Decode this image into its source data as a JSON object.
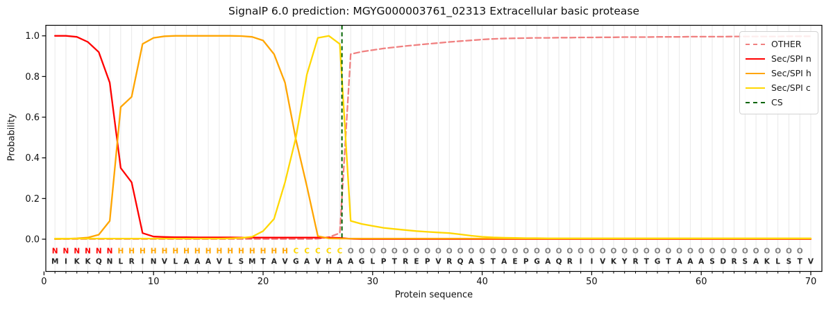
{
  "chart_data": {
    "type": "line",
    "title": "SignalP 6.0 prediction: MGYG000003761_02313 Extracellular basic protease",
    "xlabel": "Protein sequence",
    "ylabel": "Probability",
    "x_ticks": [
      0,
      10,
      20,
      30,
      40,
      50,
      60,
      70
    ],
    "y_ticks": [
      0.0,
      0.2,
      0.4,
      0.6,
      0.8,
      1.0
    ],
    "xlim": [
      0.2,
      71.0
    ],
    "ylim": [
      -0.155,
      1.05
    ],
    "grid": "vertical-per-residue",
    "positions_start": 1,
    "sequence": "MIKKQNLRINVLAAAVLSMTAVGAVHAAGLPTREPVRQASTAEPGAQRIIVKYRTGTAAASDRSAKLSTV",
    "region_labels": "NNNNNNHHHHHHHHHHHHHHHHCCCCCOOOOOOOOOOOOOOOOOOOOOOOOOOOOOOOOOOOOOOOOOO",
    "region_colors": {
      "N": "#ff0000",
      "H": "#ffa500",
      "C": "#ffd700",
      "O": "#7f7f7f"
    },
    "sequence_color": "#262626",
    "grid_color": "#e8e8e8",
    "cs_x": 27.2,
    "cs": {
      "name": "CS",
      "color": "#006400",
      "dash": "dashed"
    },
    "series": [
      {
        "name": "OTHER",
        "color": "#f08080",
        "dash": "dashed",
        "values": [
          0.001,
          0.001,
          0.001,
          0.001,
          0.001,
          0.001,
          0.001,
          0.001,
          0.001,
          0.001,
          0.001,
          0.001,
          0.001,
          0.001,
          0.001,
          0.001,
          0.001,
          0.001,
          0.001,
          0.001,
          0.001,
          0.001,
          0.001,
          0.001,
          0.002,
          0.01,
          0.03,
          0.91,
          0.922,
          0.93,
          0.938,
          0.944,
          0.95,
          0.955,
          0.96,
          0.965,
          0.97,
          0.974,
          0.978,
          0.982,
          0.985,
          0.987,
          0.988,
          0.989,
          0.99,
          0.99,
          0.991,
          0.991,
          0.992,
          0.992,
          0.993,
          0.993,
          0.994,
          0.994,
          0.994,
          0.995,
          0.995,
          0.995,
          0.996,
          0.996,
          0.996,
          0.996,
          0.997,
          0.997,
          0.997,
          0.997,
          0.997,
          0.998,
          0.998,
          0.998
        ]
      },
      {
        "name": "Sec/SPI n",
        "color": "#ff0000",
        "dash": "solid",
        "values": [
          1.0,
          1.0,
          0.995,
          0.97,
          0.92,
          0.77,
          0.35,
          0.28,
          0.03,
          0.013,
          0.011,
          0.01,
          0.01,
          0.009,
          0.009,
          0.009,
          0.009,
          0.008,
          0.008,
          0.008,
          0.008,
          0.008,
          0.008,
          0.008,
          0.008,
          0.008,
          0.006,
          0.002,
          0.001,
          0.001,
          0.001,
          0.001,
          0.001,
          0.001,
          0.001,
          0.001,
          0.001,
          0.001,
          0.001,
          0.001,
          0.001,
          0.001,
          0.001,
          0.001,
          0.001,
          0.001,
          0.001,
          0.001,
          0.001,
          0.001,
          0.001,
          0.001,
          0.001,
          0.001,
          0.001,
          0.001,
          0.001,
          0.001,
          0.001,
          0.001,
          0.001,
          0.001,
          0.001,
          0.001,
          0.001,
          0.001,
          0.001,
          0.001,
          0.001,
          0.001
        ]
      },
      {
        "name": "Sec/SPI h",
        "color": "#ffa500",
        "dash": "solid",
        "values": [
          0.001,
          0.002,
          0.004,
          0.008,
          0.022,
          0.09,
          0.65,
          0.7,
          0.96,
          0.99,
          0.998,
          1.0,
          1.0,
          1.0,
          1.0,
          1.0,
          1.0,
          0.999,
          0.995,
          0.977,
          0.91,
          0.77,
          0.49,
          0.26,
          0.015,
          0.004,
          0.003,
          0.003,
          0.003,
          0.003,
          0.003,
          0.003,
          0.003,
          0.003,
          0.003,
          0.003,
          0.003,
          0.003,
          0.003,
          0.003,
          0.003,
          0.003,
          0.003,
          0.003,
          0.003,
          0.003,
          0.003,
          0.003,
          0.003,
          0.003,
          0.003,
          0.003,
          0.003,
          0.003,
          0.003,
          0.003,
          0.003,
          0.003,
          0.003,
          0.003,
          0.003,
          0.003,
          0.003,
          0.003,
          0.003,
          0.003,
          0.003,
          0.003,
          0.003,
          0.003
        ]
      },
      {
        "name": "Sec/SPI c",
        "color": "#ffd700",
        "dash": "solid",
        "values": [
          0.003,
          0.003,
          0.003,
          0.003,
          0.003,
          0.003,
          0.003,
          0.003,
          0.003,
          0.003,
          0.003,
          0.003,
          0.003,
          0.003,
          0.003,
          0.003,
          0.004,
          0.006,
          0.012,
          0.04,
          0.1,
          0.28,
          0.5,
          0.81,
          0.99,
          1.0,
          0.96,
          0.09,
          0.075,
          0.065,
          0.056,
          0.05,
          0.045,
          0.04,
          0.036,
          0.033,
          0.03,
          0.024,
          0.017,
          0.012,
          0.009,
          0.007,
          0.006,
          0.005,
          0.005,
          0.004,
          0.004,
          0.004,
          0.004,
          0.004,
          0.004,
          0.004,
          0.004,
          0.004,
          0.004,
          0.004,
          0.004,
          0.004,
          0.004,
          0.004,
          0.004,
          0.004,
          0.004,
          0.004,
          0.004,
          0.004,
          0.004,
          0.004,
          0.004,
          0.004
        ]
      }
    ]
  },
  "legend": {
    "items": [
      {
        "label": "OTHER",
        "color": "#f08080",
        "dash": "dashed"
      },
      {
        "label": "Sec/SPI n",
        "color": "#ff0000",
        "dash": "solid"
      },
      {
        "label": "Sec/SPI h",
        "color": "#ffa500",
        "dash": "solid"
      },
      {
        "label": "Sec/SPI c",
        "color": "#ffd700",
        "dash": "solid"
      },
      {
        "label": "CS",
        "color": "#006400",
        "dash": "dashed"
      }
    ]
  }
}
